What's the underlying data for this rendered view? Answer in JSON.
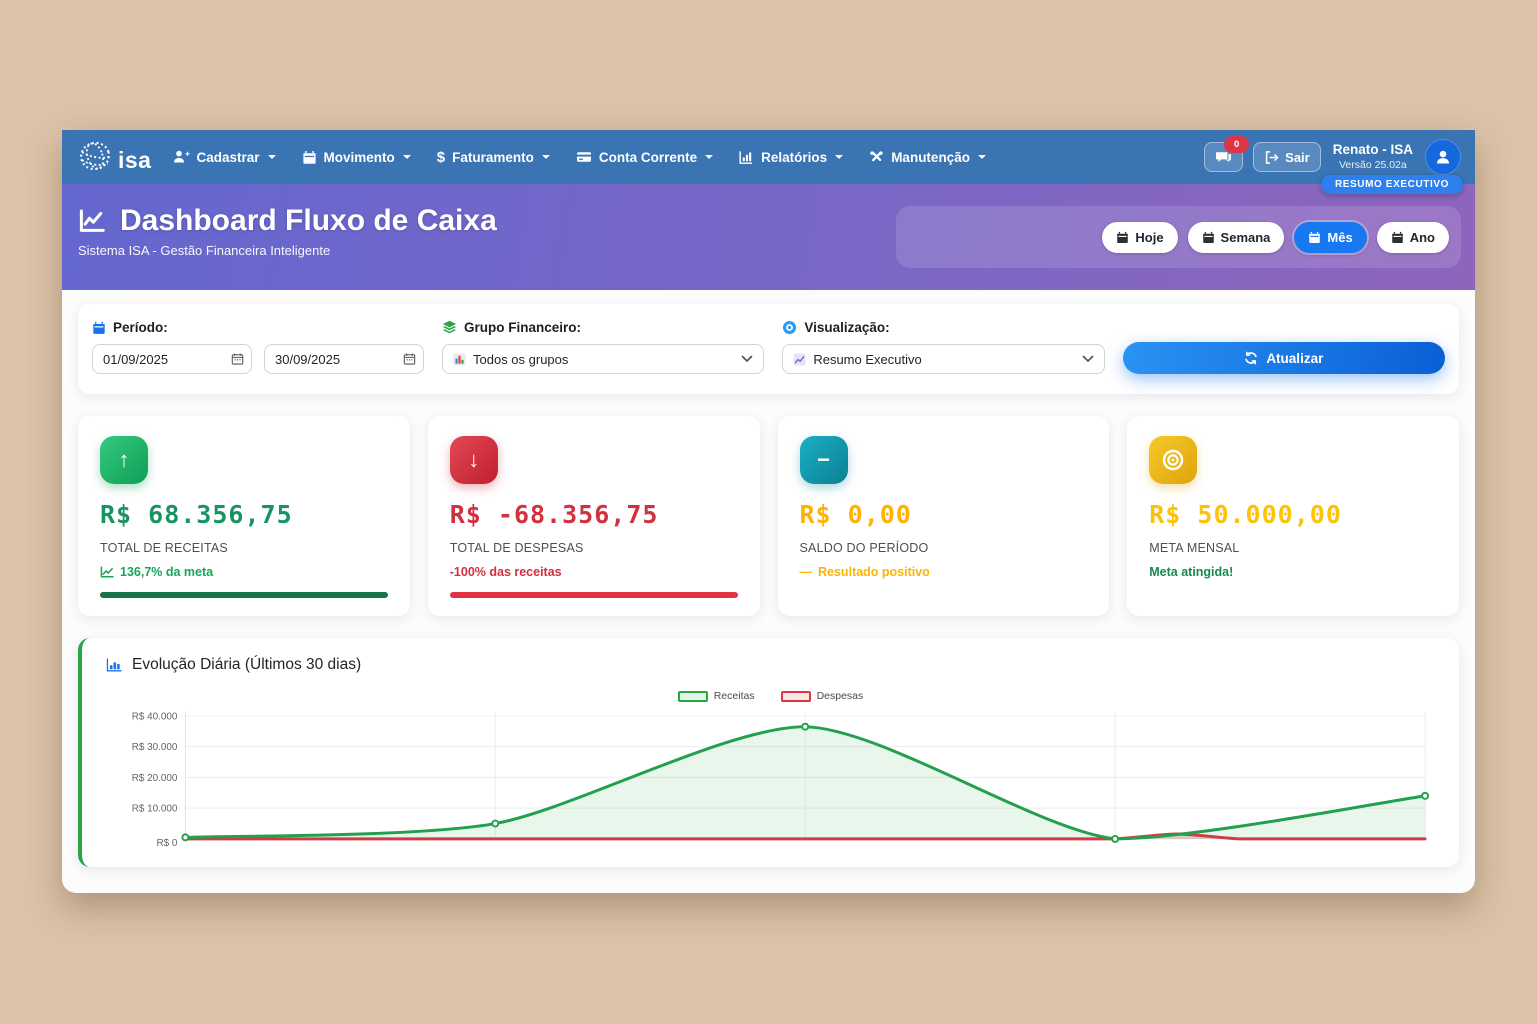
{
  "brand": {
    "logo_text": "isa"
  },
  "nav": {
    "items": [
      {
        "label": "Cadastrar",
        "icon": "person-plus-icon"
      },
      {
        "label": "Movimento",
        "icon": "calendar-icon"
      },
      {
        "label": "Faturamento",
        "icon": "dollar-icon"
      },
      {
        "label": "Conta Corrente",
        "icon": "credit-card-icon"
      },
      {
        "label": "Relatórios",
        "icon": "bar-chart-icon"
      },
      {
        "label": "Manutenção",
        "icon": "tools-icon"
      }
    ],
    "notification_count": "0",
    "logout_label": "Sair",
    "user_name": "Renato - ISA",
    "user_version": "Versão 25.02a"
  },
  "header": {
    "title": "Dashboard Fluxo de Caixa",
    "subtitle": "Sistema ISA - Gestão Financeira Inteligente",
    "exec_badge": "RESUMO EXECUTIVO",
    "period_buttons": [
      {
        "label": "Hoje",
        "active": false
      },
      {
        "label": "Semana",
        "active": false
      },
      {
        "label": "Mês",
        "active": true
      },
      {
        "label": "Ano",
        "active": false
      }
    ]
  },
  "filters": {
    "period_label": "Período:",
    "date_start": "01/09/2025",
    "date_end": "30/09/2025",
    "group_label": "Grupo Financeiro:",
    "group_value": "Todos os grupos",
    "view_label": "Visualização:",
    "view_value": "Resumo Executivo",
    "refresh_label": "Atualizar"
  },
  "stats": [
    {
      "icon": "arrow-up-icon",
      "glyph": "↑",
      "value": "R$ 68.356,75",
      "label": "TOTAL DE RECEITAS",
      "status": "136,7% da meta",
      "accent": "#1a9362",
      "has_bar": true
    },
    {
      "icon": "arrow-down-icon",
      "glyph": "↓",
      "value": "R$ -68.356,75",
      "label": "TOTAL DE DESPESAS",
      "status": "-100% das receitas",
      "accent": "#d22f3f",
      "has_bar": true
    },
    {
      "icon": "minus-icon",
      "glyph": "−",
      "value": "R$ 0,00",
      "label": "SALDO DO PERÍODO",
      "status": "Resultado positivo",
      "accent": "#ffb300",
      "has_bar": false
    },
    {
      "icon": "target-icon",
      "glyph": "◎",
      "value": "R$ 50.000,00",
      "label": "META MENSAL",
      "status": "Meta atingida!",
      "accent": "#fdc107",
      "has_bar": false
    }
  ],
  "chart_card": {
    "title": "Evolução Diária (Últimos 30 dias)",
    "legend": [
      {
        "label": "Receitas",
        "color": "#28a745"
      },
      {
        "label": "Despesas",
        "color": "#dc3545"
      }
    ]
  },
  "chart_data": {
    "type": "line",
    "title": "Evolução Diária (Últimos 30 dias)",
    "ylim": [
      0,
      40000
    ],
    "yticks": [
      {
        "label": "R$ 40.000",
        "value": 40000
      },
      {
        "label": "R$ 30.000",
        "value": 30000
      },
      {
        "label": "R$ 20.000",
        "value": 20000
      },
      {
        "label": "R$ 10.000",
        "value": 10000
      },
      {
        "label": "R$ 0",
        "value": 0
      }
    ],
    "x_axis_labels_visible": false,
    "grid": true,
    "legend_position": "top-center",
    "series": [
      {
        "name": "Receitas",
        "color": "#22a04d",
        "fill": "rgba(40,167,69,0.10)",
        "markers": true,
        "values": [
          500,
          5000,
          36500,
          0,
          14000
        ]
      },
      {
        "name": "Despesas",
        "color": "#dc3545",
        "fill": "rgba(220,53,69,0.25)",
        "markers": false,
        "values": [
          0,
          0,
          0,
          0,
          0,
          0,
          0,
          0,
          0,
          0,
          0,
          0,
          0,
          0,
          0,
          0,
          1600,
          0,
          0,
          0,
          0
        ]
      }
    ]
  },
  "colors": {
    "navbar": "#3a74b3",
    "hero_gradient_start": "#6467cf",
    "hero_gradient_end": "#8e65bd",
    "primary_blue": "#1778f2",
    "success_green": "#28a745",
    "danger_red": "#dc3545",
    "page_background": "#dcc2a6"
  }
}
